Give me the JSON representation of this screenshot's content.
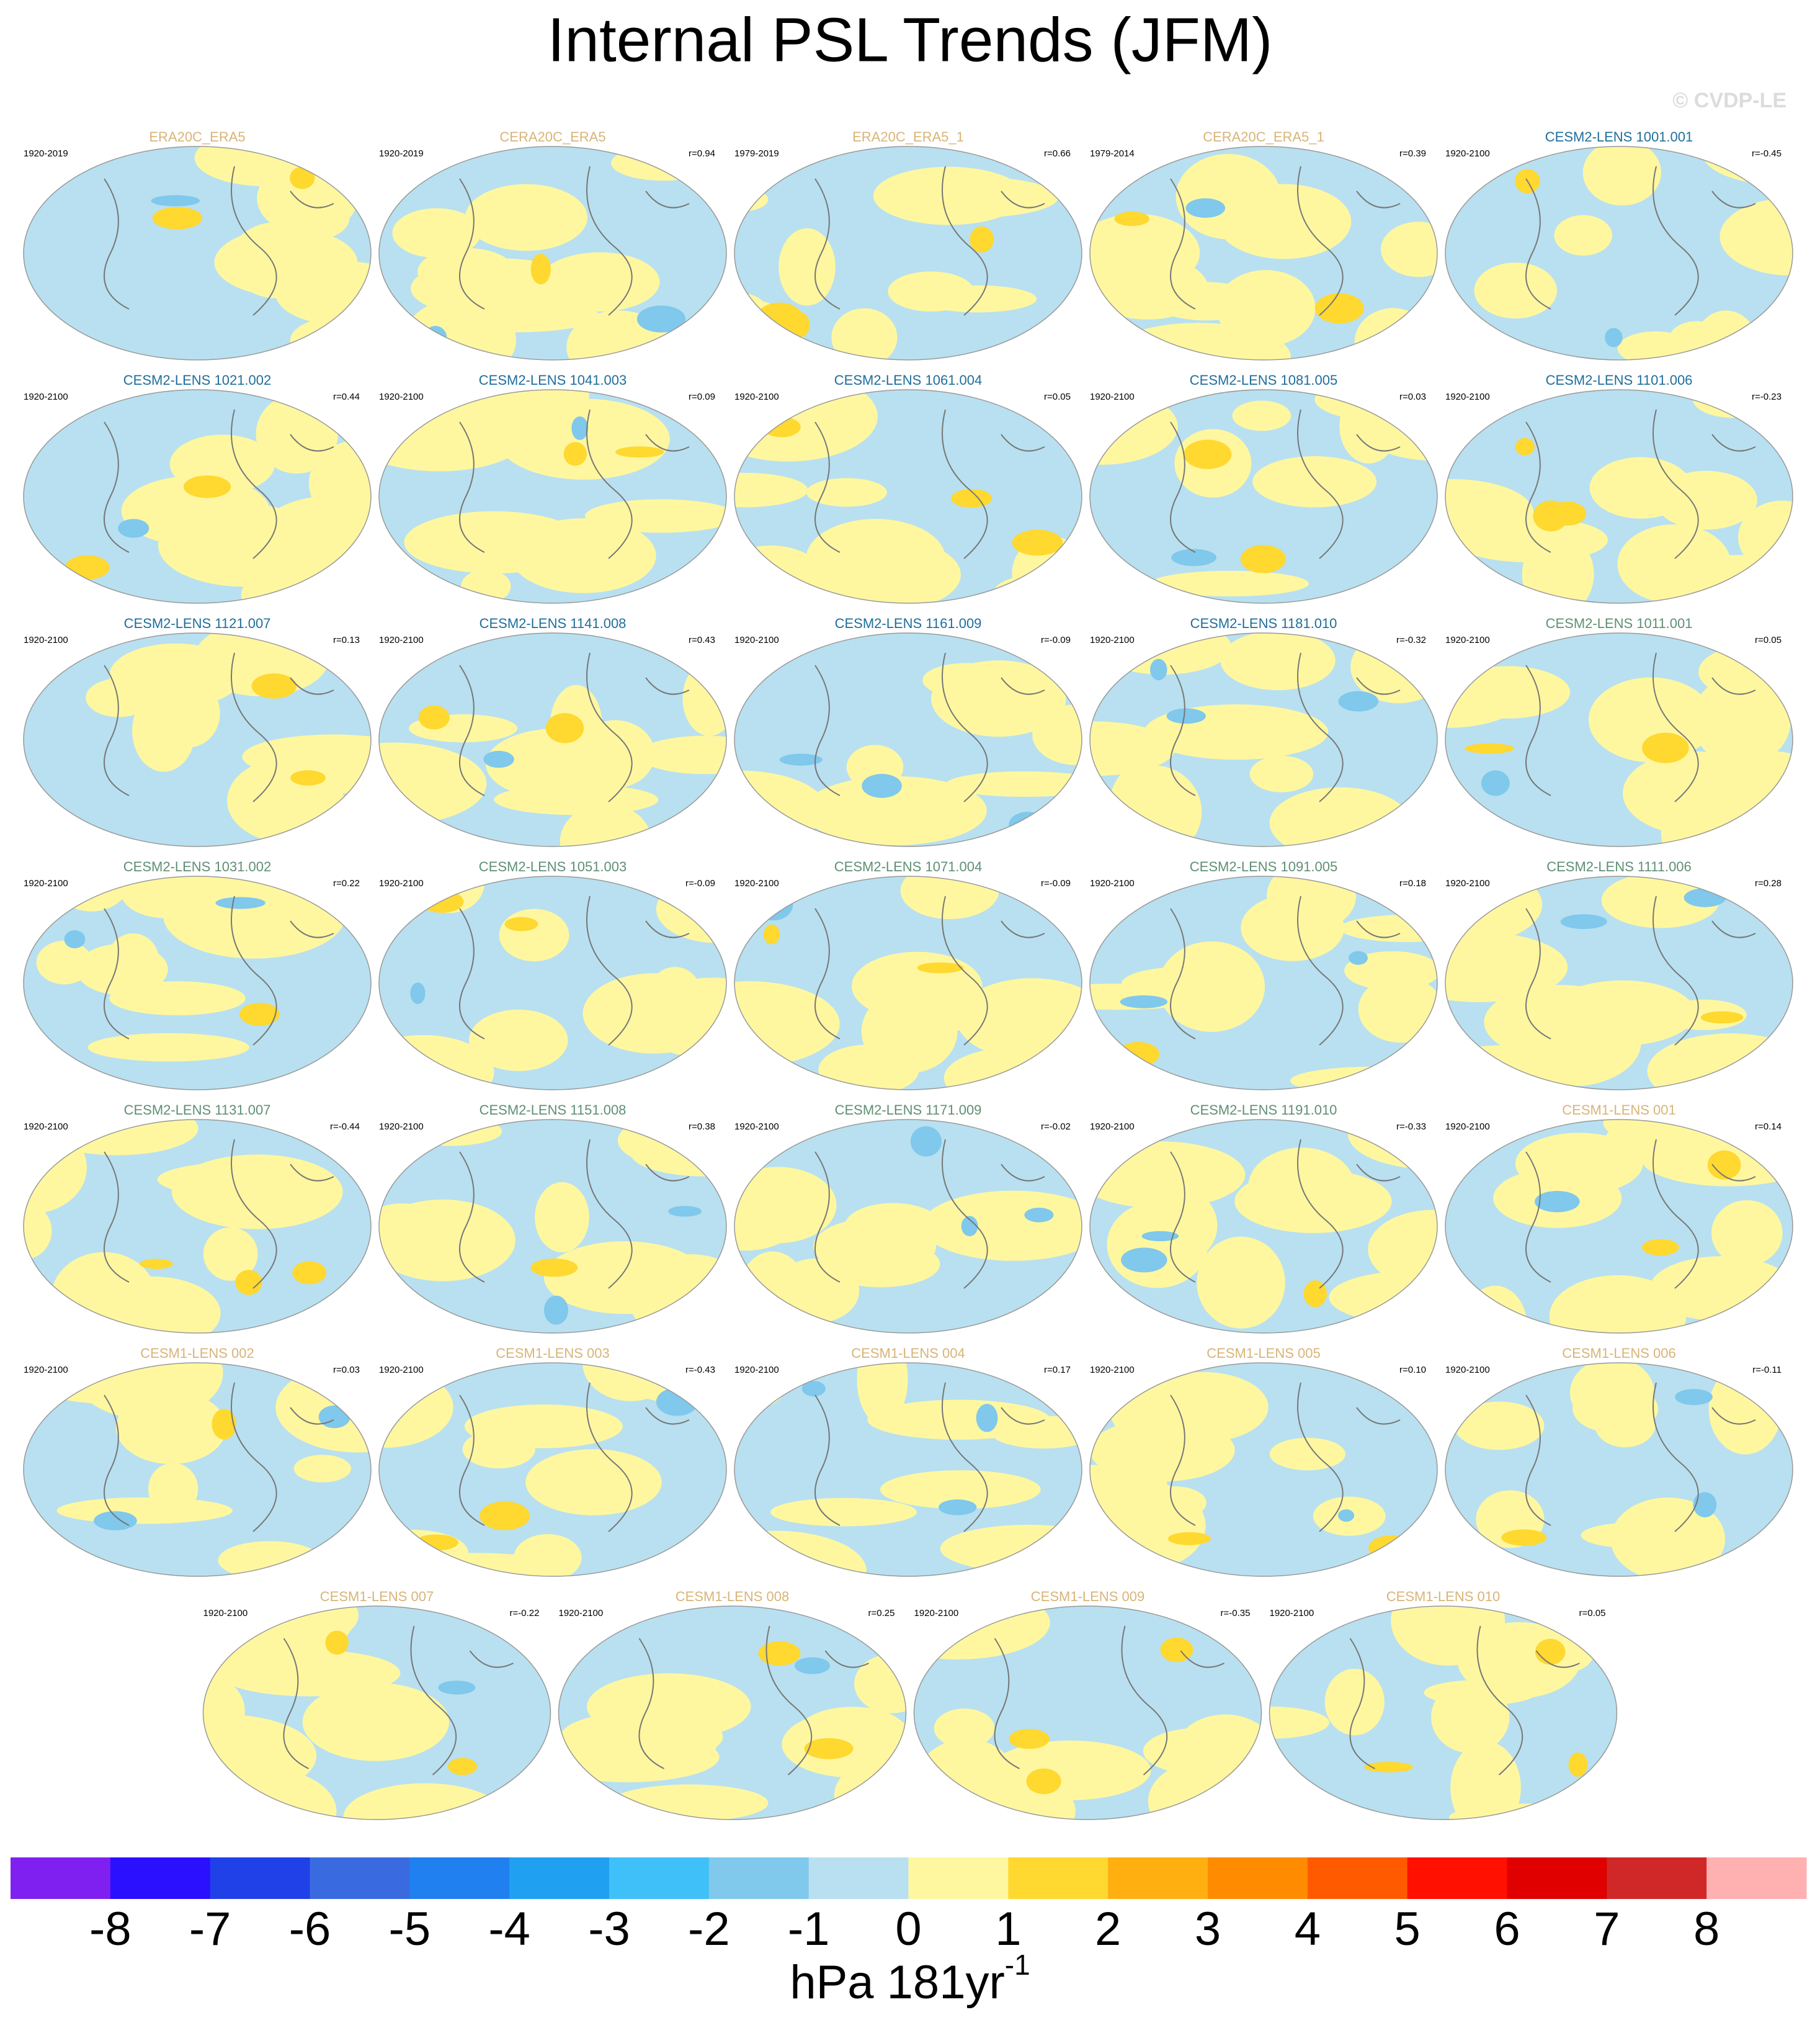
{
  "title": "Internal PSL Trends (JFM)",
  "watermark": "© CVDP-LE",
  "panels": [
    {
      "title": "ERA20C_ERA5",
      "color": "#d8b478",
      "period": "1920-2019"
    },
    {
      "title": "CERA20C_ERA5",
      "color": "#d8b478",
      "period": "1920-2019",
      "r": "r=0.94"
    },
    {
      "title": "ERA20C_ERA5_1",
      "color": "#d8b478",
      "period": "1979-2019",
      "r": "r=0.66"
    },
    {
      "title": "CERA20C_ERA5_1",
      "color": "#d8b478",
      "period": "1979-2014",
      "r": "r=0.39"
    },
    {
      "title": "CESM2-LENS 1001.001",
      "color": "#1f6e9c",
      "period": "1920-2100",
      "r": "r=-0.45"
    },
    {
      "title": "CESM2-LENS 1021.002",
      "color": "#1f6e9c",
      "period": "1920-2100",
      "r": "r=0.44"
    },
    {
      "title": "CESM2-LENS 1041.003",
      "color": "#1f6e9c",
      "period": "1920-2100",
      "r": "r=0.09"
    },
    {
      "title": "CESM2-LENS 1061.004",
      "color": "#1f6e9c",
      "period": "1920-2100",
      "r": "r=0.05"
    },
    {
      "title": "CESM2-LENS 1081.005",
      "color": "#1f6e9c",
      "period": "1920-2100",
      "r": "r=0.03"
    },
    {
      "title": "CESM2-LENS 1101.006",
      "color": "#1f6e9c",
      "period": "1920-2100",
      "r": "r=-0.23"
    },
    {
      "title": "CESM2-LENS 1121.007",
      "color": "#1f6e9c",
      "period": "1920-2100",
      "r": "r=0.13"
    },
    {
      "title": "CESM2-LENS 1141.008",
      "color": "#1f6e9c",
      "period": "1920-2100",
      "r": "r=0.43"
    },
    {
      "title": "CESM2-LENS 1161.009",
      "color": "#1f6e9c",
      "period": "1920-2100",
      "r": "r=-0.09"
    },
    {
      "title": "CESM2-LENS 1181.010",
      "color": "#1f6e9c",
      "period": "1920-2100",
      "r": "r=-0.32"
    },
    {
      "title": "CESM2-LENS 1011.001",
      "color": "#5f8f74",
      "period": "1920-2100",
      "r": "r=0.05"
    },
    {
      "title": "CESM2-LENS 1031.002",
      "color": "#5f8f74",
      "period": "1920-2100",
      "r": "r=0.22"
    },
    {
      "title": "CESM2-LENS 1051.003",
      "color": "#5f8f74",
      "period": "1920-2100",
      "r": "r=-0.09"
    },
    {
      "title": "CESM2-LENS 1071.004",
      "color": "#5f8f74",
      "period": "1920-2100",
      "r": "r=-0.09"
    },
    {
      "title": "CESM2-LENS 1091.005",
      "color": "#5f8f74",
      "period": "1920-2100",
      "r": "r=0.18"
    },
    {
      "title": "CESM2-LENS 1111.006",
      "color": "#5f8f74",
      "period": "1920-2100",
      "r": "r=0.28"
    },
    {
      "title": "CESM2-LENS 1131.007",
      "color": "#5f8f74",
      "period": "1920-2100",
      "r": "r=-0.44"
    },
    {
      "title": "CESM2-LENS 1151.008",
      "color": "#5f8f74",
      "period": "1920-2100",
      "r": "r=0.38"
    },
    {
      "title": "CESM2-LENS 1171.009",
      "color": "#5f8f74",
      "period": "1920-2100",
      "r": "r=-0.02"
    },
    {
      "title": "CESM2-LENS 1191.010",
      "color": "#5f8f74",
      "period": "1920-2100",
      "r": "r=-0.33"
    },
    {
      "title": "CESM1-LENS 001",
      "color": "#d8b478",
      "period": "1920-2100",
      "r": "r=0.14"
    },
    {
      "title": "CESM1-LENS 002",
      "color": "#d8b478",
      "period": "1920-2100",
      "r": "r=0.03"
    },
    {
      "title": "CESM1-LENS 003",
      "color": "#d8b478",
      "period": "1920-2100",
      "r": "r=-0.43"
    },
    {
      "title": "CESM1-LENS 004",
      "color": "#d8b478",
      "period": "1920-2100",
      "r": "r=0.17"
    },
    {
      "title": "CESM1-LENS 005",
      "color": "#d8b478",
      "period": "1920-2100",
      "r": "r=0.10"
    },
    {
      "title": "CESM1-LENS 006",
      "color": "#d8b478",
      "period": "1920-2100",
      "r": "r=-0.11"
    },
    {
      "title": "CESM1-LENS 007",
      "color": "#d8b478",
      "period": "1920-2100",
      "r": "r=-0.22"
    },
    {
      "title": "CESM1-LENS 008",
      "color": "#d8b478",
      "period": "1920-2100",
      "r": "r=0.25"
    },
    {
      "title": "CESM1-LENS 009",
      "color": "#d8b478",
      "period": "1920-2100",
      "r": "r=-0.35"
    },
    {
      "title": "CESM1-LENS 010",
      "color": "#d8b478",
      "period": "1920-2100",
      "r": "r=0.05"
    }
  ],
  "colorbar": {
    "colors": [
      "#8020f0",
      "#2a10ff",
      "#2040e8",
      "#3a6ae0",
      "#2080f0",
      "#20a0f0",
      "#40c0f8",
      "#80c8ec",
      "#b8e0f0",
      "#fff7a0",
      "#ffd830",
      "#ffb010",
      "#ff8c00",
      "#ff5a00",
      "#ff1000",
      "#e00000",
      "#d02828",
      "#ffb0b0"
    ],
    "ticks": [
      -8,
      -7,
      -6,
      -5,
      -4,
      -3,
      -2,
      -1,
      0,
      1,
      2,
      3,
      4,
      5,
      6,
      7,
      8
    ],
    "label": "hPa 181yr",
    "label_exponent": "-1"
  }
}
